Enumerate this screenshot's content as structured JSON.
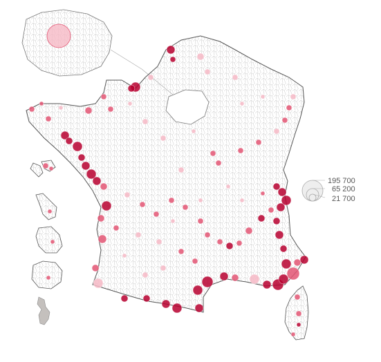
{
  "legend": {
    "items": [
      {
        "label": "195 700",
        "value": 195700
      },
      {
        "label": "65 200",
        "value": 65200
      },
      {
        "label": "21 700",
        "value": 21700
      }
    ]
  },
  "colors": {
    "background": "#ffffff",
    "boundary": "#9a9a9a",
    "outline": "#555555",
    "low": "#f6b9c6",
    "mid": "#e35573",
    "high": "#b7002f",
    "mayotte_fill": "#c4c0bd"
  },
  "map": {
    "regions": [
      "metropolitan-france",
      "ile-de-france-inset",
      "corsica",
      "guadeloupe",
      "martinique",
      "guyane",
      "reunion",
      "mayotte"
    ],
    "symbol": "proportional-circles"
  }
}
